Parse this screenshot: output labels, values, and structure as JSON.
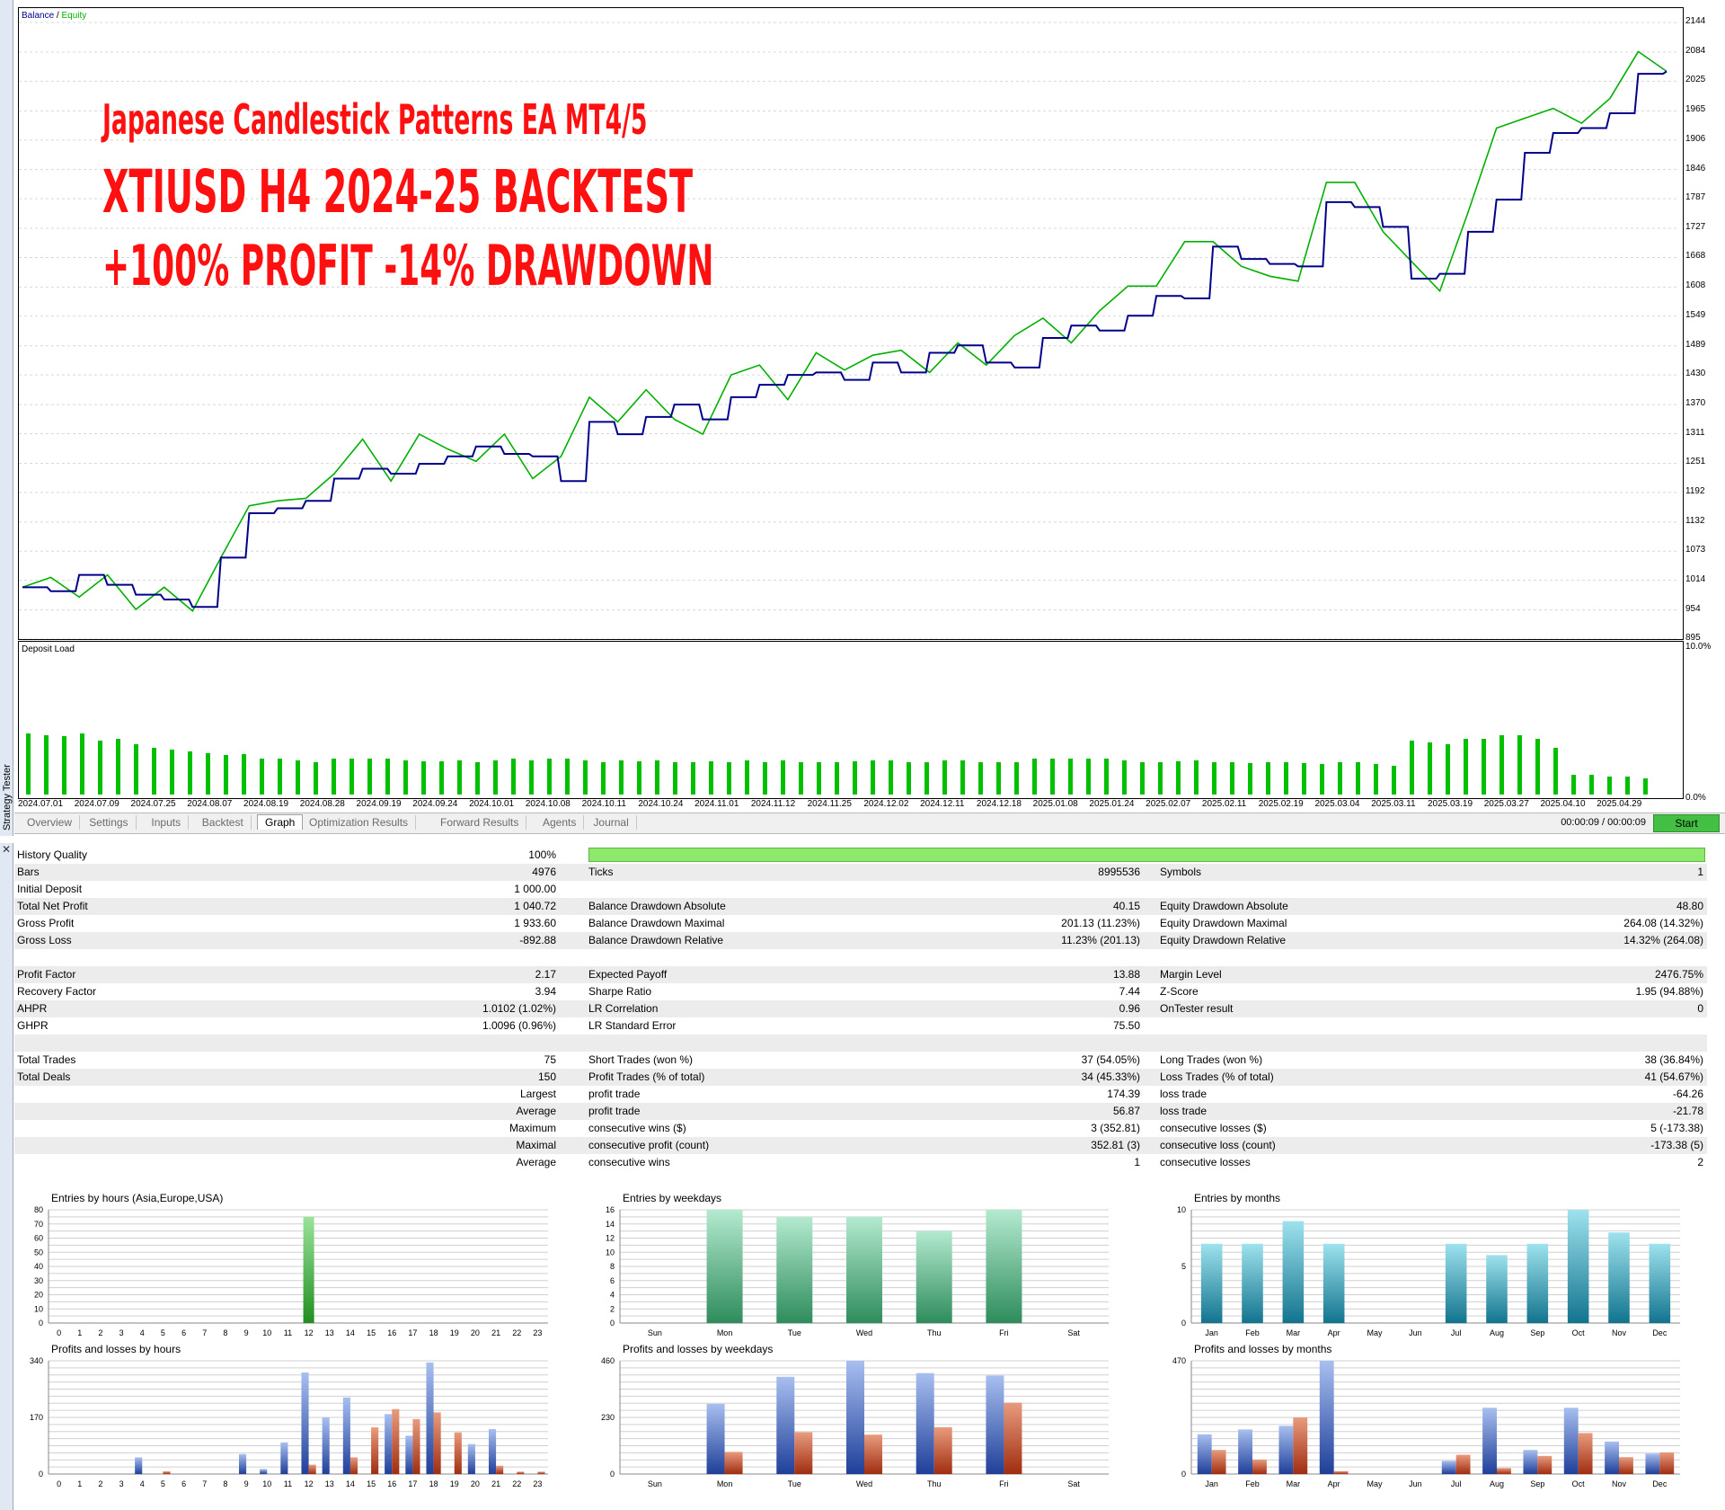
{
  "sidebar": {
    "label": "Strategy Tester"
  },
  "overlay": {
    "line1": "Japanese Candlestick Patterns EA MT4/5",
    "line2": "XTIUSD H4 2024-25 BACKTEST",
    "line3": "+100% PROFIT  -14% DRAWDOWN"
  },
  "main_chart": {
    "legend_balance": "Balance",
    "legend_sep": " / ",
    "legend_equity": "Equity",
    "balance_color": "#00008b",
    "equity_color": "#00b000",
    "y_ticks": [
      "2144",
      "2084",
      "2025",
      "1965",
      "1906",
      "1846",
      "1787",
      "1727",
      "1668",
      "1608",
      "1549",
      "1489",
      "1430",
      "1370",
      "1311",
      "1251",
      "1192",
      "1132",
      "1073",
      "1014",
      "954",
      "895"
    ],
    "ylim": [
      895,
      2144
    ]
  },
  "deposit_chart": {
    "label": "Deposit Load",
    "y_top": "10.0%",
    "y_bottom": "0.0%",
    "x_labels": [
      "2024.07.01",
      "2024.07.09",
      "2024.07.25",
      "2024.08.07",
      "2024.08.19",
      "2024.08.28",
      "2024.09.19",
      "2024.09.24",
      "2024.10.01",
      "2024.10.08",
      "2024.10.11",
      "2024.10.24",
      "2024.11.01",
      "2024.11.12",
      "2024.11.25",
      "2024.12.02",
      "2024.12.11",
      "2024.12.18",
      "2025.01.08",
      "2025.01.24",
      "2025.02.07",
      "2025.02.11",
      "2025.02.19",
      "2025.03.04",
      "2025.03.11",
      "2025.03.19",
      "2025.03.27",
      "2025.04.10",
      "2025.04.29"
    ],
    "bar_color": "#00c000"
  },
  "chart_data": [
    {
      "type": "line",
      "title": "",
      "series": [
        {
          "name": "Balance",
          "values": [
            1000,
            992,
            1025,
            1005,
            985,
            975,
            960,
            1060,
            1150,
            1160,
            1175,
            1220,
            1240,
            1230,
            1250,
            1265,
            1285,
            1270,
            1265,
            1215,
            1335,
            1310,
            1345,
            1370,
            1340,
            1385,
            1410,
            1430,
            1435,
            1420,
            1455,
            1435,
            1475,
            1490,
            1455,
            1445,
            1505,
            1530,
            1520,
            1550,
            1590,
            1585,
            1690,
            1665,
            1655,
            1650,
            1780,
            1770,
            1730,
            1625,
            1635,
            1720,
            1785,
            1880,
            1920,
            1930,
            1960,
            2040,
            2045
          ],
          "color": "#00008b"
        },
        {
          "name": "Equity",
          "values": [
            1000,
            1020,
            980,
            1025,
            955,
            1000,
            952,
            1060,
            1165,
            1175,
            1180,
            1230,
            1300,
            1215,
            1310,
            1280,
            1255,
            1310,
            1220,
            1265,
            1385,
            1335,
            1400,
            1340,
            1310,
            1430,
            1450,
            1380,
            1475,
            1440,
            1470,
            1480,
            1435,
            1495,
            1450,
            1510,
            1545,
            1495,
            1560,
            1610,
            1610,
            1700,
            1700,
            1650,
            1630,
            1620,
            1820,
            1820,
            1720,
            1660,
            1600,
            1760,
            1930,
            1950,
            1970,
            1940,
            1990,
            2085,
            2045
          ],
          "color": "#00b000"
        }
      ],
      "ylim": [
        895,
        2144
      ]
    },
    {
      "type": "bar",
      "title": "Entries by hours (Asia,Europe,USA)",
      "categories": [
        "0",
        "1",
        "2",
        "3",
        "4",
        "5",
        "6",
        "7",
        "8",
        "9",
        "10",
        "11",
        "12",
        "13",
        "14",
        "15",
        "16",
        "17",
        "18",
        "19",
        "20",
        "21",
        "22",
        "23"
      ],
      "values": [
        0,
        0,
        0,
        0,
        0,
        0,
        0,
        0,
        0,
        0,
        0,
        0,
        75,
        0,
        0,
        0,
        0,
        0,
        0,
        0,
        0,
        0,
        0,
        0
      ],
      "ylim": [
        0,
        80
      ],
      "y_ticks": [
        "80",
        "70",
        "60",
        "50",
        "40",
        "30",
        "20",
        "10",
        "0"
      ]
    },
    {
      "type": "bar",
      "title": "Entries by weekdays",
      "categories": [
        "Sun",
        "Mon",
        "Tue",
        "Wed",
        "Thu",
        "Fri",
        "Sat"
      ],
      "values": [
        0,
        16,
        15,
        15,
        13,
        16,
        0
      ],
      "ylim": [
        0,
        16
      ],
      "y_ticks": [
        "16",
        "14",
        "12",
        "10",
        "8",
        "6",
        "4",
        "2",
        "0"
      ]
    },
    {
      "type": "bar",
      "title": "Entries by months",
      "categories": [
        "Jan",
        "Feb",
        "Mar",
        "Apr",
        "May",
        "Jun",
        "Jul",
        "Aug",
        "Sep",
        "Oct",
        "Nov",
        "Dec"
      ],
      "values": [
        7,
        7,
        9,
        7,
        0,
        0,
        7,
        6,
        7,
        10,
        8,
        7
      ],
      "ylim": [
        0,
        10
      ],
      "y_ticks": [
        "10",
        "5",
        "0"
      ]
    },
    {
      "type": "bar",
      "title": "Profits and losses by hours",
      "categories": [
        "0",
        "1",
        "2",
        "3",
        "4",
        "5",
        "6",
        "7",
        "8",
        "9",
        "10",
        "11",
        "12",
        "13",
        "14",
        "15",
        "16",
        "17",
        "18",
        "19",
        "20",
        "21",
        "22",
        "23"
      ],
      "series": [
        {
          "name": "profit",
          "values": [
            0,
            0,
            0,
            0,
            50,
            0,
            0,
            0,
            0,
            60,
            15,
            95,
            305,
            170,
            230,
            0,
            180,
            115,
            335,
            0,
            90,
            135,
            0,
            0
          ]
        },
        {
          "name": "loss",
          "values": [
            0,
            0,
            0,
            0,
            0,
            8,
            0,
            0,
            0,
            0,
            0,
            0,
            28,
            0,
            50,
            140,
            195,
            165,
            185,
            125,
            0,
            25,
            7,
            7
          ]
        }
      ],
      "ylim": [
        0,
        340
      ],
      "y_ticks": [
        "340",
        "170",
        "0"
      ]
    },
    {
      "type": "bar",
      "title": "Profits and losses by weekdays",
      "categories": [
        "Sun",
        "Mon",
        "Tue",
        "Wed",
        "Thu",
        "Fri",
        "Sat"
      ],
      "series": [
        {
          "name": "profit",
          "values": [
            0,
            285,
            395,
            460,
            410,
            400,
            0
          ]
        },
        {
          "name": "loss",
          "values": [
            0,
            90,
            170,
            160,
            190,
            290,
            0
          ]
        }
      ],
      "ylim": [
        0,
        460
      ],
      "y_ticks": [
        "460",
        "230",
        "0"
      ]
    },
    {
      "type": "bar",
      "title": "Profits and losses by months",
      "categories": [
        "Jan",
        "Feb",
        "Mar",
        "Apr",
        "May",
        "Jun",
        "Jul",
        "Aug",
        "Sep",
        "Oct",
        "Nov",
        "Dec"
      ],
      "series": [
        {
          "name": "profit",
          "values": [
            165,
            185,
            200,
            470,
            0,
            0,
            55,
            275,
            100,
            275,
            135,
            85
          ]
        },
        {
          "name": "loss",
          "values": [
            100,
            60,
            235,
            12,
            0,
            0,
            80,
            25,
            75,
            170,
            70,
            90
          ]
        }
      ],
      "ylim": [
        0,
        470
      ],
      "y_ticks": [
        "470",
        "0"
      ]
    }
  ],
  "tabs": [
    "Overview",
    "Settings",
    "Inputs",
    "Backtest",
    "Graph",
    "Optimization Results",
    "Forward Results",
    "Agents",
    "Journal"
  ],
  "active_tab": "Graph",
  "timer": "00:00:09 / 00:00:09",
  "start_label": "Start",
  "stats": {
    "history_quality_label": "History Quality",
    "history_quality": "100%",
    "history_quality_fraction": 1.0,
    "rows": [
      {
        "c1l": "Bars",
        "c1v": "4976",
        "c2l": "Ticks",
        "c2v": "8995536",
        "c3l": "Symbols",
        "c3v": "1"
      },
      {
        "c1l": "Initial Deposit",
        "c1v": "1 000.00",
        "c2l": "",
        "c2v": "",
        "c3l": "",
        "c3v": ""
      },
      {
        "c1l": "Total Net Profit",
        "c1v": "1 040.72",
        "c2l": "Balance Drawdown Absolute",
        "c2v": "40.15",
        "c3l": "Equity Drawdown Absolute",
        "c3v": "48.80"
      },
      {
        "c1l": "Gross Profit",
        "c1v": "1 933.60",
        "c2l": "Balance Drawdown Maximal",
        "c2v": "201.13 (11.23%)",
        "c3l": "Equity Drawdown Maximal",
        "c3v": "264.08 (14.32%)"
      },
      {
        "c1l": "Gross Loss",
        "c1v": "-892.88",
        "c2l": "Balance Drawdown Relative",
        "c2v": "11.23% (201.13)",
        "c3l": "Equity Drawdown Relative",
        "c3v": "14.32% (264.08)"
      },
      {
        "c1l": "",
        "c1v": "",
        "c2l": "",
        "c2v": "",
        "c3l": "",
        "c3v": ""
      },
      {
        "c1l": "Profit Factor",
        "c1v": "2.17",
        "c2l": "Expected Payoff",
        "c2v": "13.88",
        "c3l": "Margin Level",
        "c3v": "2476.75%"
      },
      {
        "c1l": "Recovery Factor",
        "c1v": "3.94",
        "c2l": "Sharpe Ratio",
        "c2v": "7.44",
        "c3l": "Z-Score",
        "c3v": "1.95 (94.88%)"
      },
      {
        "c1l": "AHPR",
        "c1v": "1.0102 (1.02%)",
        "c2l": "LR Correlation",
        "c2v": "0.96",
        "c3l": "OnTester result",
        "c3v": "0"
      },
      {
        "c1l": "GHPR",
        "c1v": "1.0096 (0.96%)",
        "c2l": "LR Standard Error",
        "c2v": "75.50",
        "c3l": "",
        "c3v": ""
      },
      {
        "c1l": "",
        "c1v": "",
        "c2l": "",
        "c2v": "",
        "c3l": "",
        "c3v": ""
      },
      {
        "c1l": "Total Trades",
        "c1v": "75",
        "c2l": "Short Trades (won %)",
        "c2v": "37 (54.05%)",
        "c3l": "Long Trades (won %)",
        "c3v": "38 (36.84%)"
      },
      {
        "c1l": "Total Deals",
        "c1v": "150",
        "c2l": "Profit Trades (% of total)",
        "c2v": "34 (45.33%)",
        "c3l": "Loss Trades (% of total)",
        "c3v": "41 (54.67%)"
      },
      {
        "c1l": "",
        "c1v": "Largest",
        "c2l": "profit trade",
        "c2v": "174.39",
        "c3l": "loss trade",
        "c3v": "-64.26"
      },
      {
        "c1l": "",
        "c1v": "Average",
        "c2l": "profit trade",
        "c2v": "56.87",
        "c3l": "loss trade",
        "c3v": "-21.78"
      },
      {
        "c1l": "",
        "c1v": "Maximum",
        "c2l": "consecutive wins ($)",
        "c2v": "3 (352.81)",
        "c3l": "consecutive losses ($)",
        "c3v": "5 (-173.38)"
      },
      {
        "c1l": "",
        "c1v": "Maximal",
        "c2l": "consecutive profit (count)",
        "c2v": "352.81 (3)",
        "c3l": "consecutive loss (count)",
        "c3v": "-173.38 (5)"
      },
      {
        "c1l": "",
        "c1v": "Average",
        "c2l": "consecutive wins",
        "c2v": "1",
        "c3l": "consecutive losses",
        "c3v": "2"
      }
    ]
  }
}
